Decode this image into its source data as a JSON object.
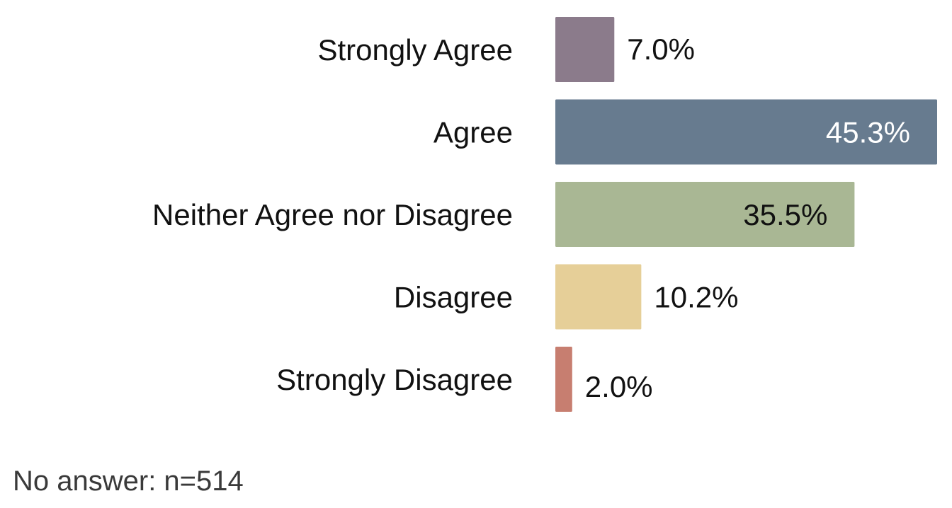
{
  "chart_data": {
    "type": "bar",
    "orientation": "horizontal",
    "categories": [
      "Strongly Agree",
      "Agree",
      "Neither Agree nor Disagree",
      "Disagree",
      "Strongly Disagree"
    ],
    "values": [
      7.0,
      45.3,
      35.5,
      10.2,
      2.0
    ],
    "value_labels": [
      "7.0%",
      "45.3%",
      "35.5%",
      "10.2%",
      "2.0%"
    ],
    "colors": [
      "#8b7b8b",
      "#677b8f",
      "#a9b794",
      "#e6cf98",
      "#c77e70"
    ],
    "label_colors": [
      "#111111",
      "#ffffff",
      "#111111",
      "#111111",
      "#111111"
    ],
    "label_inside": [
      false,
      true,
      true,
      false,
      false
    ],
    "xlim": [
      0,
      45.3
    ],
    "grid": false,
    "legend": "none"
  },
  "footnote": "No answer: n=514"
}
